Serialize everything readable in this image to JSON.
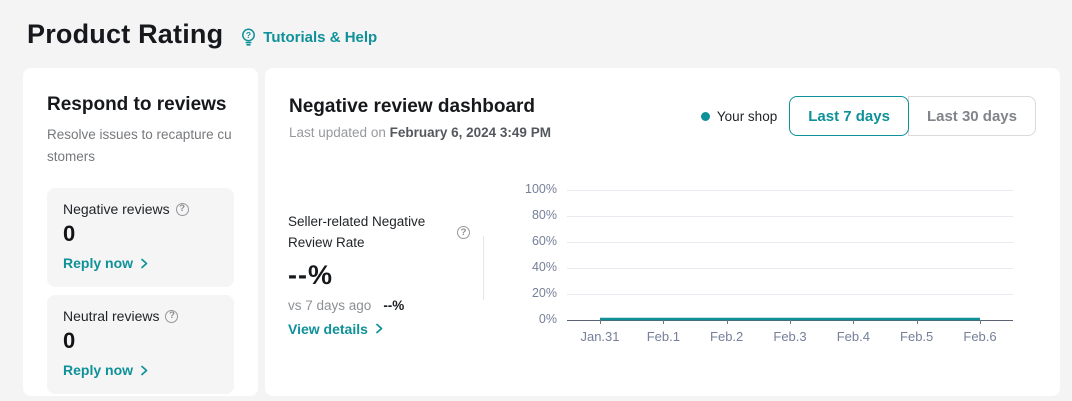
{
  "page": {
    "title": "Product Rating",
    "help_link": "Tutorials & Help"
  },
  "sidebar": {
    "title": "Respond to reviews",
    "subtitle": "Resolve issues to recapture customers",
    "cards": [
      {
        "label": "Negative reviews",
        "count": "0",
        "action": "Reply now"
      },
      {
        "label": "Neutral reviews",
        "count": "0",
        "action": "Reply now"
      }
    ]
  },
  "dashboard": {
    "title": "Negative review dashboard",
    "last_updated_prefix": "Last updated on",
    "last_updated_value": "February 6, 2024 3:49 PM",
    "legend": {
      "label": "Your shop"
    },
    "range_buttons": [
      {
        "label": "Last 7 days",
        "selected": true
      },
      {
        "label": "Last 30 days",
        "selected": false
      }
    ],
    "metric": {
      "label": "Seller-related Negative Review Rate",
      "value": "--%",
      "compare_prefix": "vs 7 days ago",
      "compare_value": "--%",
      "action": "View details"
    }
  },
  "chart_data": {
    "type": "line",
    "x": [
      "Jan.31",
      "Feb.1",
      "Feb.2",
      "Feb.3",
      "Feb.4",
      "Feb.5",
      "Feb.6"
    ],
    "series": [
      {
        "name": "Your shop",
        "values": [
          0,
          0,
          0,
          0,
          0,
          0,
          0
        ],
        "color": "#0f9199"
      }
    ],
    "title": "",
    "xlabel": "",
    "ylabel": "",
    "ylim": [
      0,
      100
    ],
    "ytick_labels": [
      "0%",
      "20%",
      "40%",
      "60%",
      "80%",
      "100%"
    ],
    "grid": true,
    "legend_position": "top-right"
  },
  "colors": {
    "accent": "#0f9199",
    "page_bg": "#f4f4f5",
    "panel_bg": "#ffffff",
    "card_bg": "#f5f5f6",
    "axis_label": "#767f99"
  }
}
